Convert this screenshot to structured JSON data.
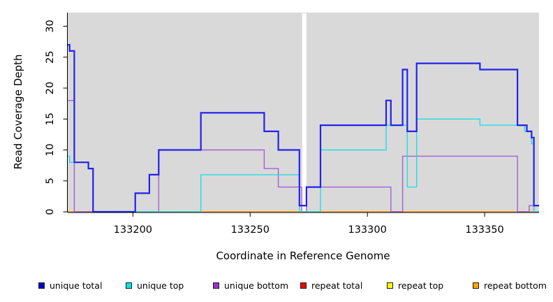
{
  "chart_data": {
    "type": "line",
    "step": true,
    "title": "",
    "xlabel": "Coordinate in Reference Genome",
    "ylabel": "Read Coverage Depth",
    "xlim": [
      133172.2,
      133373.2
    ],
    "ylim": [
      0,
      32.2
    ],
    "x_ticks": [
      133200,
      133250,
      133300,
      133350
    ],
    "y_ticks": [
      0,
      5,
      10,
      15,
      20,
      25,
      30
    ],
    "grid": false,
    "plot_bg": "#D9D9D9",
    "axis_color": "#000000",
    "gap": {
      "x_from": 133272.2,
      "x_to": 133274.0,
      "color": "#FFFFFF"
    },
    "legend_position": "bottom",
    "series": [
      {
        "name": "unique total",
        "color": "#2222EE",
        "legend_color": "#0000CC",
        "width": 2.2,
        "steps": [
          [
            133172,
            27
          ],
          [
            133173,
            26
          ],
          [
            133175,
            8
          ],
          [
            133181,
            7
          ],
          [
            133183,
            0
          ],
          [
            133201,
            3
          ],
          [
            133207,
            6
          ],
          [
            133211,
            10
          ],
          [
            133229,
            16
          ],
          [
            133256,
            13
          ],
          [
            133262,
            10
          ],
          [
            133271,
            1
          ],
          [
            133274,
            4
          ],
          [
            133280,
            14
          ],
          [
            133308,
            18
          ],
          [
            133310,
            14
          ],
          [
            133315,
            23
          ],
          [
            133317,
            13
          ],
          [
            133321,
            24
          ],
          [
            133348,
            23
          ],
          [
            133364,
            14
          ],
          [
            133368,
            13
          ],
          [
            133370,
            12
          ],
          [
            133371,
            1
          ]
        ]
      },
      {
        "name": "unique top",
        "color": "#22DDE6",
        "legend_color": "#00E5EE",
        "width": 1.4,
        "steps": [
          [
            133172,
            9
          ],
          [
            133173,
            8
          ],
          [
            133181,
            7
          ],
          [
            133183,
            0
          ],
          [
            133229,
            6
          ],
          [
            133271,
            0
          ],
          [
            133280,
            10
          ],
          [
            133308,
            14
          ],
          [
            133317,
            4
          ],
          [
            133321,
            15
          ],
          [
            133348,
            14
          ],
          [
            133367,
            13
          ],
          [
            133370,
            11
          ],
          [
            133371,
            0
          ]
        ]
      },
      {
        "name": "unique bottom",
        "color": "#A45FD6",
        "legend_color": "#9932CC",
        "width": 1.4,
        "steps": [
          [
            133172,
            18
          ],
          [
            133175,
            0
          ],
          [
            133211,
            10
          ],
          [
            133256,
            7
          ],
          [
            133262,
            4
          ],
          [
            133272,
            0
          ],
          [
            133274,
            4
          ],
          [
            133310,
            0
          ],
          [
            133315,
            9
          ],
          [
            133364,
            0
          ],
          [
            133369,
            1
          ],
          [
            133371,
            0
          ]
        ]
      },
      {
        "name": "repeat total",
        "color": "#E02020",
        "legend_color": "#EE0000",
        "width": 1.4,
        "steps": [
          [
            133172,
            0
          ]
        ]
      },
      {
        "name": "repeat top",
        "color": "#F0F000",
        "legend_color": "#FFFF00",
        "width": 1.4,
        "steps": [
          [
            133172,
            0
          ]
        ]
      },
      {
        "name": "repeat bottom",
        "color": "#FF9912",
        "legend_color": "#FFA500",
        "width": 1.6,
        "steps": [
          [
            133172,
            0
          ]
        ]
      }
    ],
    "draw_order": [
      3,
      4,
      5,
      2,
      1,
      0
    ]
  }
}
